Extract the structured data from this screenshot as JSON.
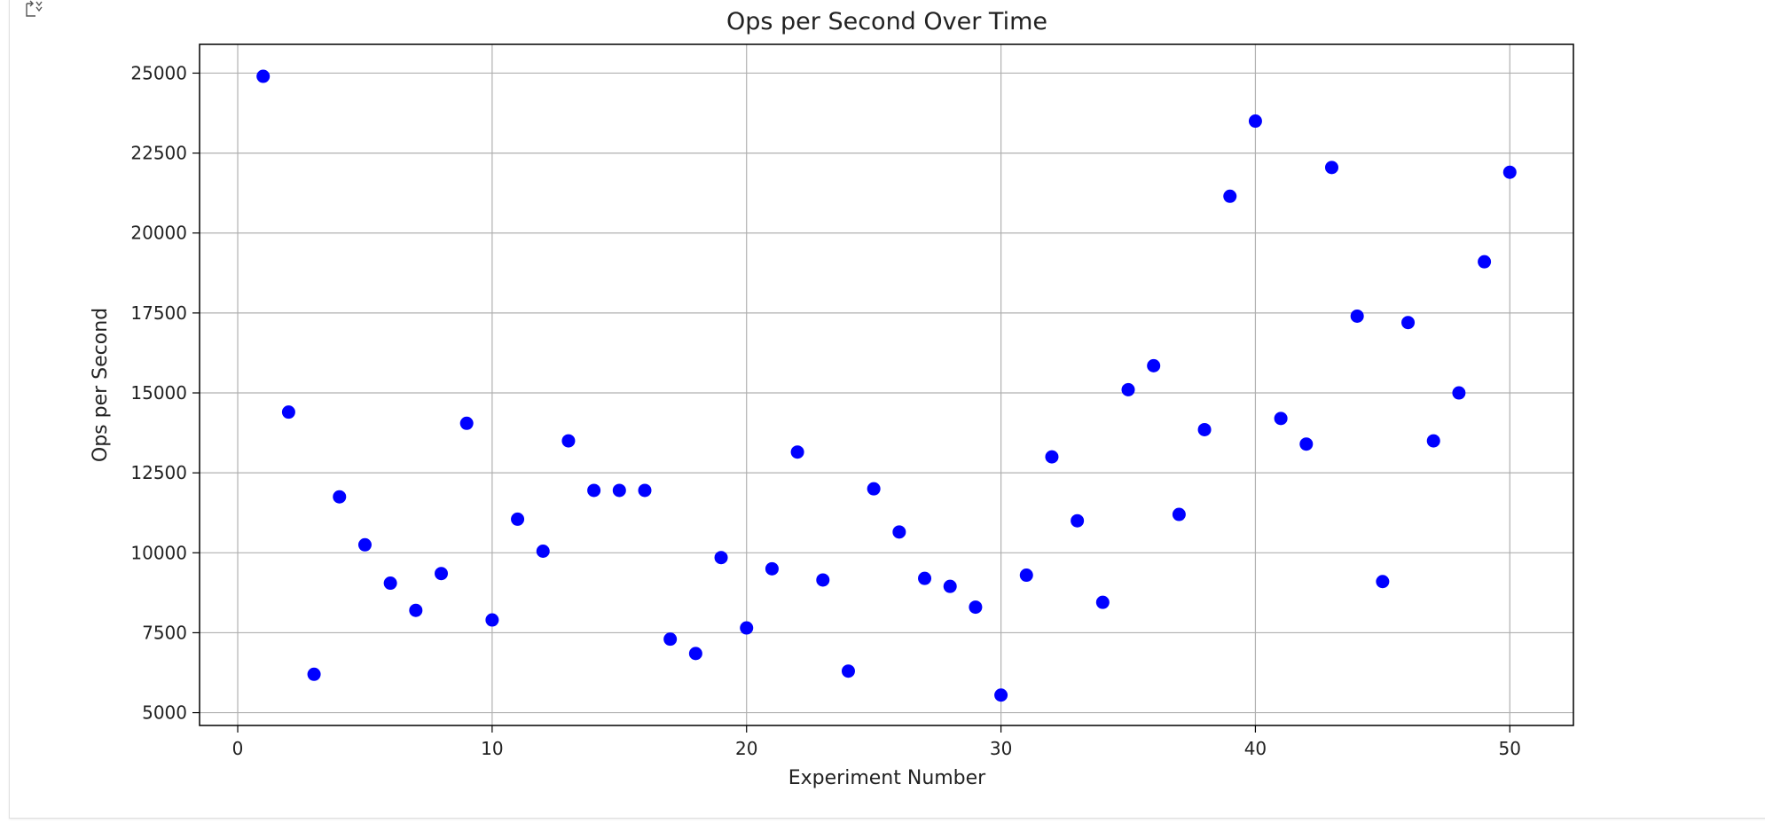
{
  "icons": {
    "output_toggle": "output-collapse-icon"
  },
  "chart_data": {
    "type": "scatter",
    "title": "Ops per Second Over Time",
    "xlabel": "Experiment Number",
    "ylabel": "Ops per Second",
    "xlim": [
      -1.5,
      52.5
    ],
    "ylim": [
      4600,
      25900
    ],
    "xticks": [
      0,
      10,
      20,
      30,
      40,
      50
    ],
    "yticks": [
      5000,
      7500,
      10000,
      12500,
      15000,
      17500,
      20000,
      22500,
      25000
    ],
    "grid": true,
    "marker_color": "#0000ff",
    "series": [
      {
        "x": [
          1,
          2,
          3,
          4,
          5,
          6,
          7,
          8,
          9,
          10,
          11,
          12,
          13,
          14,
          15,
          16,
          17,
          18,
          19,
          20,
          21,
          22,
          23,
          24,
          25,
          26,
          27,
          28,
          29,
          30,
          31,
          32,
          33,
          34,
          35,
          36,
          37,
          38,
          39,
          40,
          41,
          42,
          43,
          44,
          45,
          46,
          47,
          48,
          49,
          50
        ],
        "y": [
          24900,
          14400,
          6200,
          11750,
          10250,
          9050,
          8200,
          9350,
          14050,
          7900,
          11050,
          10050,
          13500,
          11950,
          11950,
          11950,
          7300,
          6850,
          9850,
          7650,
          9500,
          13150,
          9150,
          6300,
          12000,
          10650,
          9200,
          8950,
          8300,
          5550,
          9300,
          13000,
          11000,
          8450,
          15100,
          15850,
          11200,
          13850,
          21150,
          23500,
          14200,
          13400,
          22050,
          17400,
          9100,
          17200,
          13500,
          15000,
          19100,
          21900
        ]
      }
    ]
  }
}
